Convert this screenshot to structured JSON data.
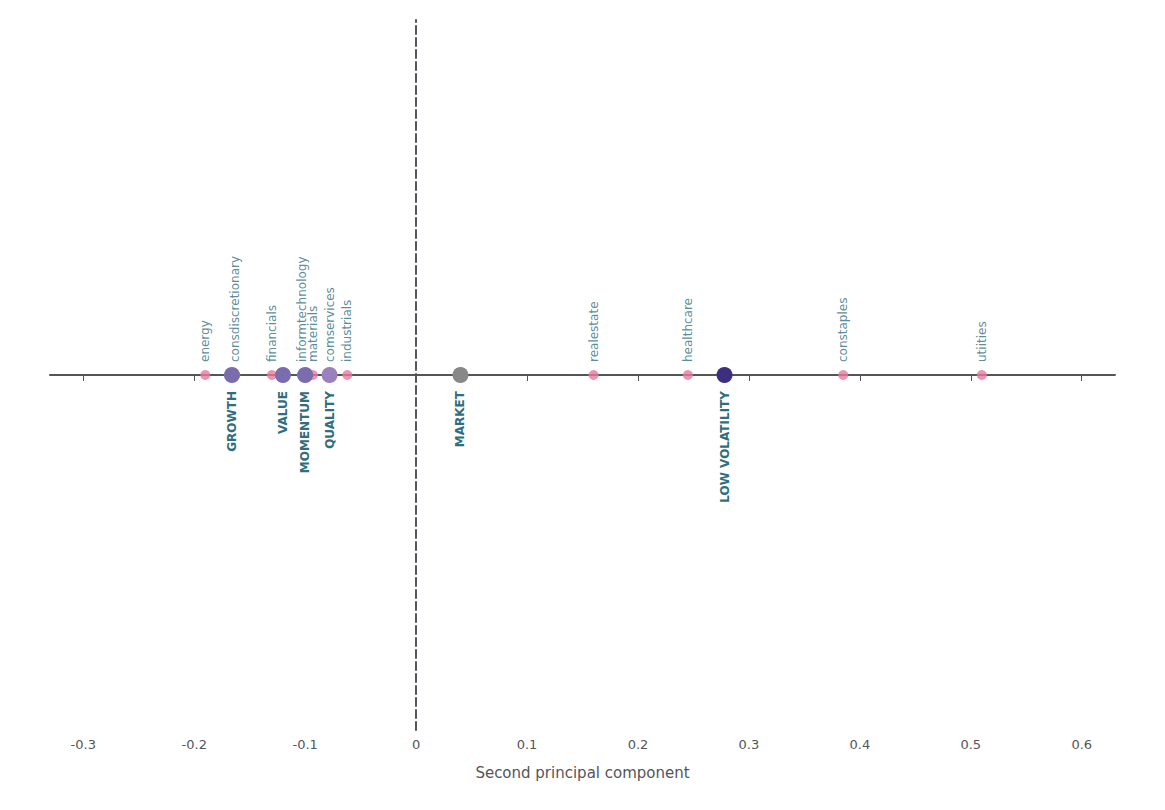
{
  "chart_data": {
    "type": "scatter",
    "xlabel": "Second principal component",
    "xlim": [
      -0.33,
      0.63
    ],
    "xticks": [
      -0.3,
      -0.2,
      -0.1,
      0,
      0.1,
      0.2,
      0.3,
      0.4,
      0.5,
      0.6
    ],
    "tick_labels": "x",
    "grid": false,
    "series": [
      {
        "type": "scatter",
        "x": [
          -0.19,
          -0.163,
          -0.13,
          -0.103,
          -0.093,
          -0.078,
          -0.062,
          0.16,
          0.245,
          0.385,
          0.51
        ],
        "labels": [
          "energy",
          "consdiscretionary",
          "financials",
          "informtechnology",
          "materials",
          "comservices",
          "industrials",
          "realestate",
          "healthcare",
          "constaples",
          "utiities"
        ],
        "color": "#e8799f"
      },
      {
        "type": "scatter",
        "x": [
          -0.166,
          -0.12,
          -0.1,
          -0.078,
          0.04,
          0.278
        ],
        "labels": [
          "GROWTH",
          "VALUE",
          "MOMENTUM",
          "QUALITY",
          "MARKET",
          "LOW VOLATILITY"
        ],
        "colors": [
          "#7b6cad",
          "#7b6cad",
          "#7b6cad",
          "#9b80c0",
          "#888888",
          "#3d2e80"
        ]
      }
    ]
  }
}
